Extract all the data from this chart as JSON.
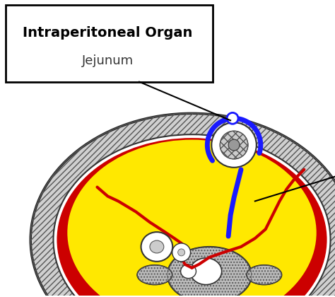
{
  "title_bold": "Intraperitoneal Organ",
  "title_normal": "Jejunum",
  "bg_color": "#ffffff",
  "yellow_color": "#FFE800",
  "red_color": "#CC0000",
  "blue_color": "#1A1AFF",
  "outer_body_color": "#d8d8d8",
  "muscle_color": "#c0c0c0",
  "bone_color": "#cccccc",
  "gut_color": "#e0e0e0"
}
